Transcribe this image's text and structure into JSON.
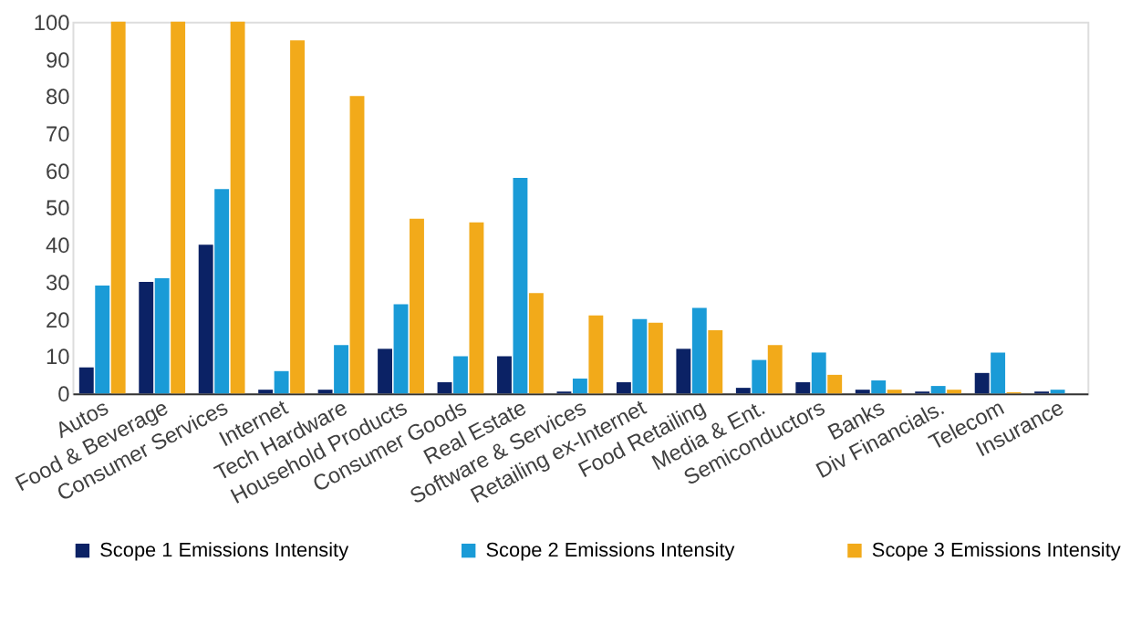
{
  "chart_data": {
    "type": "bar",
    "categories": [
      "Autos",
      "Food & Beverage",
      "Consumer Services",
      "Internet",
      "Tech Hardware",
      "Household Products",
      "Consumer Goods",
      "Real Estate",
      "Software & Services",
      "Retailing ex-Internet",
      "Food Retailing",
      "Media & Ent.",
      "Semiconductors",
      "Banks",
      "Div Financials.",
      "Telecom",
      "Insurance"
    ],
    "series": [
      {
        "name": "Scope 1 Emissions Intensity",
        "color": "#0b2265",
        "values": [
          7,
          30,
          40,
          1,
          1,
          12,
          3,
          10,
          0.5,
          3,
          12,
          1.5,
          3,
          1,
          0.5,
          5.5,
          0.5
        ]
      },
      {
        "name": "Scope 2 Emissions Intensity",
        "color": "#1a9bd7",
        "values": [
          29,
          31,
          55,
          6,
          13,
          24,
          10,
          58,
          4,
          20,
          23,
          9,
          11,
          3.5,
          2,
          11,
          1
        ]
      },
      {
        "name": "Scope 3 Emissions Intensity",
        "color": "#f2aa1a",
        "values": [
          100,
          100,
          100,
          95,
          80,
          47,
          46,
          27,
          21,
          19,
          17,
          13,
          5,
          1,
          1,
          0.3,
          0
        ]
      }
    ],
    "ylim": [
      0,
      100
    ],
    "yticks": [
      0,
      10,
      20,
      30,
      40,
      50,
      60,
      70,
      80,
      90,
      100
    ],
    "grid": false,
    "legend": "bottom"
  }
}
